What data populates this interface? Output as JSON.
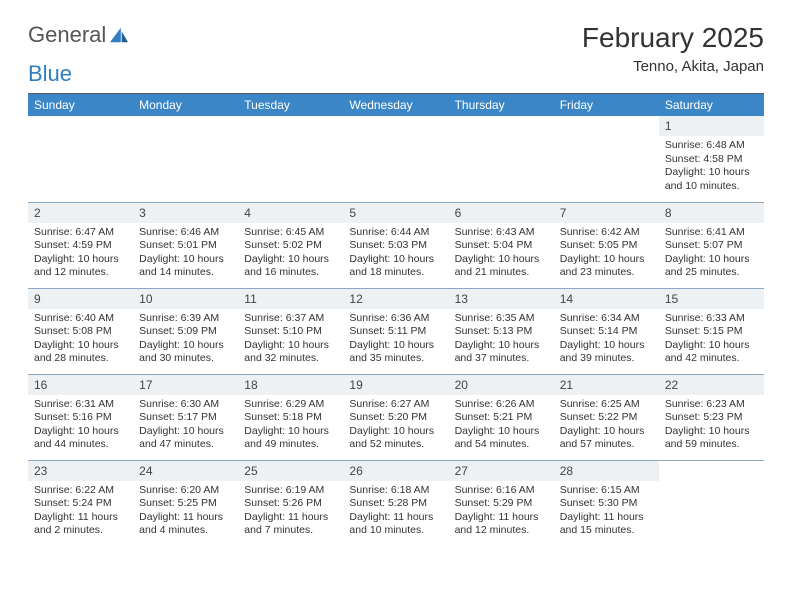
{
  "logo": {
    "text1": "General",
    "text2": "Blue"
  },
  "title": "February 2025",
  "location": "Tenno, Akita, Japan",
  "colors": {
    "header_bg": "#3b86c7",
    "header_text": "#ffffff",
    "daynum_bg": "#eef1f4",
    "border": "#8aa8c4",
    "logo_blue": "#2f7fc1",
    "text": "#333333"
  },
  "weekdays": [
    "Sunday",
    "Monday",
    "Tuesday",
    "Wednesday",
    "Thursday",
    "Friday",
    "Saturday"
  ],
  "weeks": [
    [
      null,
      null,
      null,
      null,
      null,
      null,
      {
        "n": "1",
        "sr": "Sunrise: 6:48 AM",
        "ss": "Sunset: 4:58 PM",
        "dl": "Daylight: 10 hours and 10 minutes."
      }
    ],
    [
      {
        "n": "2",
        "sr": "Sunrise: 6:47 AM",
        "ss": "Sunset: 4:59 PM",
        "dl": "Daylight: 10 hours and 12 minutes."
      },
      {
        "n": "3",
        "sr": "Sunrise: 6:46 AM",
        "ss": "Sunset: 5:01 PM",
        "dl": "Daylight: 10 hours and 14 minutes."
      },
      {
        "n": "4",
        "sr": "Sunrise: 6:45 AM",
        "ss": "Sunset: 5:02 PM",
        "dl": "Daylight: 10 hours and 16 minutes."
      },
      {
        "n": "5",
        "sr": "Sunrise: 6:44 AM",
        "ss": "Sunset: 5:03 PM",
        "dl": "Daylight: 10 hours and 18 minutes."
      },
      {
        "n": "6",
        "sr": "Sunrise: 6:43 AM",
        "ss": "Sunset: 5:04 PM",
        "dl": "Daylight: 10 hours and 21 minutes."
      },
      {
        "n": "7",
        "sr": "Sunrise: 6:42 AM",
        "ss": "Sunset: 5:05 PM",
        "dl": "Daylight: 10 hours and 23 minutes."
      },
      {
        "n": "8",
        "sr": "Sunrise: 6:41 AM",
        "ss": "Sunset: 5:07 PM",
        "dl": "Daylight: 10 hours and 25 minutes."
      }
    ],
    [
      {
        "n": "9",
        "sr": "Sunrise: 6:40 AM",
        "ss": "Sunset: 5:08 PM",
        "dl": "Daylight: 10 hours and 28 minutes."
      },
      {
        "n": "10",
        "sr": "Sunrise: 6:39 AM",
        "ss": "Sunset: 5:09 PM",
        "dl": "Daylight: 10 hours and 30 minutes."
      },
      {
        "n": "11",
        "sr": "Sunrise: 6:37 AM",
        "ss": "Sunset: 5:10 PM",
        "dl": "Daylight: 10 hours and 32 minutes."
      },
      {
        "n": "12",
        "sr": "Sunrise: 6:36 AM",
        "ss": "Sunset: 5:11 PM",
        "dl": "Daylight: 10 hours and 35 minutes."
      },
      {
        "n": "13",
        "sr": "Sunrise: 6:35 AM",
        "ss": "Sunset: 5:13 PM",
        "dl": "Daylight: 10 hours and 37 minutes."
      },
      {
        "n": "14",
        "sr": "Sunrise: 6:34 AM",
        "ss": "Sunset: 5:14 PM",
        "dl": "Daylight: 10 hours and 39 minutes."
      },
      {
        "n": "15",
        "sr": "Sunrise: 6:33 AM",
        "ss": "Sunset: 5:15 PM",
        "dl": "Daylight: 10 hours and 42 minutes."
      }
    ],
    [
      {
        "n": "16",
        "sr": "Sunrise: 6:31 AM",
        "ss": "Sunset: 5:16 PM",
        "dl": "Daylight: 10 hours and 44 minutes."
      },
      {
        "n": "17",
        "sr": "Sunrise: 6:30 AM",
        "ss": "Sunset: 5:17 PM",
        "dl": "Daylight: 10 hours and 47 minutes."
      },
      {
        "n": "18",
        "sr": "Sunrise: 6:29 AM",
        "ss": "Sunset: 5:18 PM",
        "dl": "Daylight: 10 hours and 49 minutes."
      },
      {
        "n": "19",
        "sr": "Sunrise: 6:27 AM",
        "ss": "Sunset: 5:20 PM",
        "dl": "Daylight: 10 hours and 52 minutes."
      },
      {
        "n": "20",
        "sr": "Sunrise: 6:26 AM",
        "ss": "Sunset: 5:21 PM",
        "dl": "Daylight: 10 hours and 54 minutes."
      },
      {
        "n": "21",
        "sr": "Sunrise: 6:25 AM",
        "ss": "Sunset: 5:22 PM",
        "dl": "Daylight: 10 hours and 57 minutes."
      },
      {
        "n": "22",
        "sr": "Sunrise: 6:23 AM",
        "ss": "Sunset: 5:23 PM",
        "dl": "Daylight: 10 hours and 59 minutes."
      }
    ],
    [
      {
        "n": "23",
        "sr": "Sunrise: 6:22 AM",
        "ss": "Sunset: 5:24 PM",
        "dl": "Daylight: 11 hours and 2 minutes."
      },
      {
        "n": "24",
        "sr": "Sunrise: 6:20 AM",
        "ss": "Sunset: 5:25 PM",
        "dl": "Daylight: 11 hours and 4 minutes."
      },
      {
        "n": "25",
        "sr": "Sunrise: 6:19 AM",
        "ss": "Sunset: 5:26 PM",
        "dl": "Daylight: 11 hours and 7 minutes."
      },
      {
        "n": "26",
        "sr": "Sunrise: 6:18 AM",
        "ss": "Sunset: 5:28 PM",
        "dl": "Daylight: 11 hours and 10 minutes."
      },
      {
        "n": "27",
        "sr": "Sunrise: 6:16 AM",
        "ss": "Sunset: 5:29 PM",
        "dl": "Daylight: 11 hours and 12 minutes."
      },
      {
        "n": "28",
        "sr": "Sunrise: 6:15 AM",
        "ss": "Sunset: 5:30 PM",
        "dl": "Daylight: 11 hours and 15 minutes."
      },
      null
    ]
  ]
}
